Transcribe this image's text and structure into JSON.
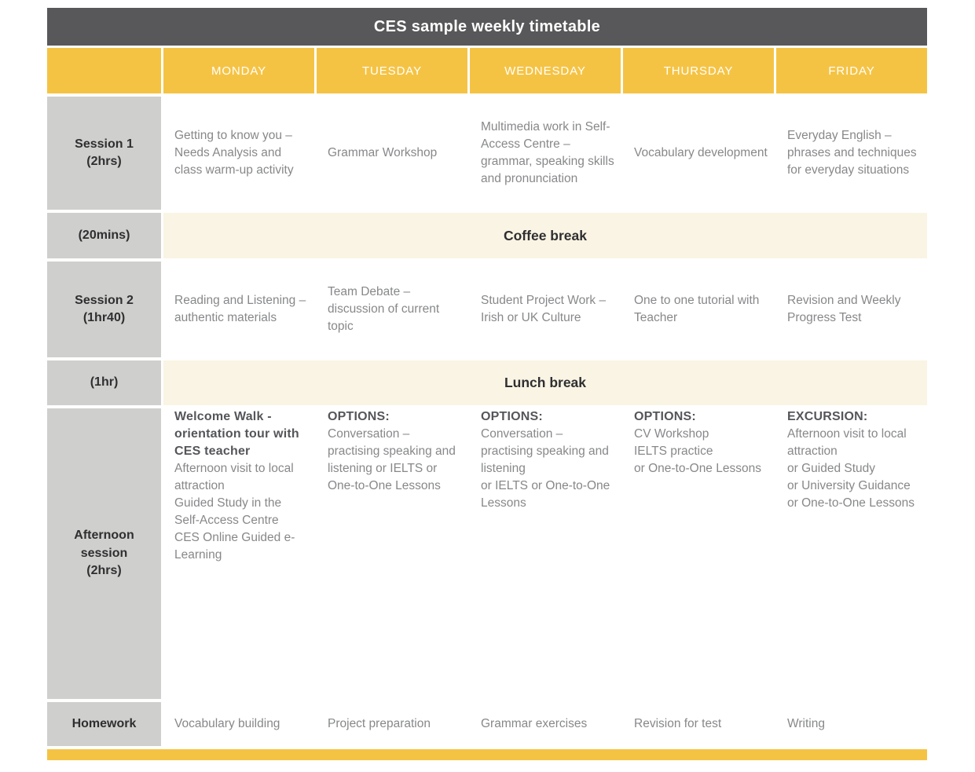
{
  "title": "CES sample weekly timetable",
  "colors": {
    "title_bar_gray": "#58585A",
    "header_yellow": "#F5C344",
    "label_gray": "#CFCFCD",
    "break_cream": "#FAF4E4",
    "body_text_gray": "#87888A"
  },
  "days": {
    "monday": "MONDAY",
    "tuesday": "TUESDAY",
    "wednesday": "WEDNESDAY",
    "thursday": "THURSDAY",
    "friday": "FRIDAY"
  },
  "rows": {
    "session1": {
      "label": "Session 1\n(2hrs)",
      "monday": "Getting to know you – Needs Analysis and class warm-up activity",
      "tuesday": "Grammar Workshop",
      "wednesday": "Multimedia work in Self-Access Centre – grammar, speaking skills and pronunciation",
      "thursday": "Vocabulary development",
      "friday": "Everyday English – phrases and techniques for everyday situations"
    },
    "coffee_break": {
      "label": "(20mins)",
      "text": "Coffee break"
    },
    "session2": {
      "label": "Session 2\n(1hr40)",
      "monday": "Reading and Listening – authentic materials",
      "tuesday": "Team Debate – discussion of current topic",
      "wednesday": "Student Project Work – Irish or UK Culture",
      "thursday": "One to one tutorial with Teacher",
      "friday": "Revision and Weekly Progress Test"
    },
    "lunch_break": {
      "label": "(1hr)",
      "text": "Lunch break"
    },
    "afternoon": {
      "label": "Afternoon\nsession\n(2hrs)",
      "monday": [
        {
          "text": "Welcome Walk - orientation tour with CES teacher"
        },
        {
          "text": "Afternoon visit to local attraction"
        },
        {
          "text": "Guided Study in the Self-Access Centre"
        },
        {
          "text": "CES Online Guided e-Learning"
        }
      ],
      "tuesday": [
        {
          "text": "OPTIONS:"
        },
        {
          "text": "Conversation – practising speaking and listening or IELTS or One-to-One Lessons"
        }
      ],
      "wednesday": [
        {
          "text": "OPTIONS:"
        },
        {
          "text": "Conversation – practising speaking and listening"
        },
        {
          "text": "or IELTS or One-to-One Lessons"
        }
      ],
      "thursday": [
        {
          "text": "OPTIONS:"
        },
        {
          "text": "CV Workshop"
        },
        {
          "text": "IELTS practice"
        },
        {
          "text": "or One-to-One Lessons"
        }
      ],
      "friday": [
        {
          "text": "EXCURSION:"
        },
        {
          "text": "Afternoon visit to local attraction"
        },
        {
          "text": "or Guided Study"
        },
        {
          "text": "or University Guidance"
        },
        {
          "text": "or One-to-One Lessons"
        }
      ]
    },
    "homework": {
      "label": "Homework",
      "monday": "Vocabulary building",
      "tuesday": "Project preparation",
      "wednesday": "Grammar exercises",
      "thursday": "Revision for test",
      "friday": "Writing"
    }
  }
}
